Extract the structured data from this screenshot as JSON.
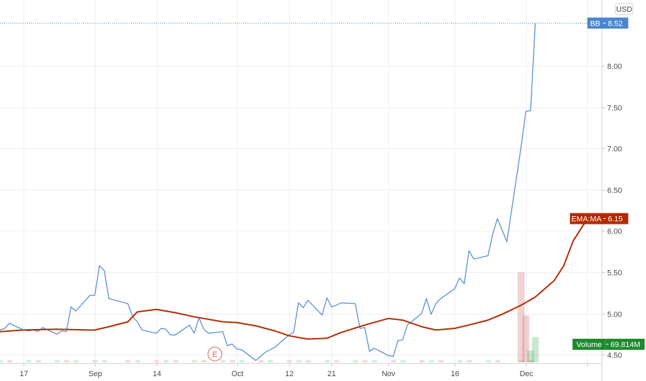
{
  "currency_label": "USD",
  "event_marker": "E",
  "colors": {
    "price_line": "#4a86d0",
    "ema_line": "#b22a00",
    "volume_up": "#2e9e4a",
    "volume_down": "#c94a4a",
    "volume_flag": "#1e8a2e",
    "grid": "#eef0f3",
    "axis_text": "#4a4a4a"
  },
  "price_flags": [
    {
      "label": "BB",
      "value": "8.52",
      "color": "#4a86d0"
    },
    {
      "label": "EMA:MA",
      "value": "6.15",
      "color": "#b22a00"
    },
    {
      "label": "Volume",
      "value": "69.814M",
      "color": "#1e8a2e"
    }
  ],
  "chart_data": {
    "type": "line",
    "ylim": [
      4.4,
      8.8
    ],
    "y_ticks": [
      "8.00",
      "7.50",
      "7.00",
      "6.50",
      "6.00",
      "5.50",
      "5.00",
      "4.50"
    ],
    "x_ticks": [
      {
        "label": "17",
        "date": "2020-08-17"
      },
      {
        "label": "Sep",
        "date": "2020-09-01"
      },
      {
        "label": "14",
        "date": "2020-09-14"
      },
      {
        "label": "Oct",
        "date": "2020-10-01"
      },
      {
        "label": "12",
        "date": "2020-10-12"
      },
      {
        "label": "21",
        "date": "2020-10-21"
      },
      {
        "label": "Nov",
        "date": "2020-11-02"
      },
      {
        "label": "16",
        "date": "2020-11-16"
      },
      {
        "label": "Dec",
        "date": "2020-12-01"
      },
      {
        "label": "",
        "date": "2020-12-14"
      }
    ],
    "x_range": [
      "2020-08-12",
      "2020-12-17"
    ],
    "grid": true,
    "series": [
      {
        "name": "BB",
        "points": [
          [
            "2020-08-12",
            4.8
          ],
          [
            "2020-08-13",
            4.82
          ],
          [
            "2020-08-14",
            4.88
          ],
          [
            "2020-08-17",
            4.8
          ],
          [
            "2020-08-18",
            4.79
          ],
          [
            "2020-08-19",
            4.8
          ],
          [
            "2020-08-20",
            4.78
          ],
          [
            "2020-08-21",
            4.83
          ],
          [
            "2020-08-24",
            4.75
          ],
          [
            "2020-08-25",
            4.79
          ],
          [
            "2020-08-26",
            4.78
          ],
          [
            "2020-08-27",
            5.08
          ],
          [
            "2020-08-28",
            5.03
          ],
          [
            "2020-08-31",
            5.22
          ],
          [
            "2020-09-01",
            5.22
          ],
          [
            "2020-09-02",
            5.58
          ],
          [
            "2020-09-03",
            5.52
          ],
          [
            "2020-09-04",
            5.18
          ],
          [
            "2020-09-08",
            5.12
          ],
          [
            "2020-09-09",
            4.96
          ],
          [
            "2020-09-10",
            4.9
          ],
          [
            "2020-09-11",
            4.8
          ],
          [
            "2020-09-14",
            4.76
          ],
          [
            "2020-09-15",
            4.82
          ],
          [
            "2020-09-16",
            4.81
          ],
          [
            "2020-09-17",
            4.74
          ],
          [
            "2020-09-18",
            4.74
          ],
          [
            "2020-09-21",
            4.86
          ],
          [
            "2020-09-22",
            4.76
          ],
          [
            "2020-09-23",
            4.95
          ],
          [
            "2020-09-24",
            4.81
          ],
          [
            "2020-09-25",
            4.76
          ],
          [
            "2020-09-28",
            4.78
          ],
          [
            "2020-09-29",
            4.61
          ],
          [
            "2020-09-30",
            4.63
          ],
          [
            "2020-10-01",
            4.57
          ],
          [
            "2020-10-02",
            4.56
          ],
          [
            "2020-10-05",
            4.43
          ],
          [
            "2020-10-06",
            4.48
          ],
          [
            "2020-10-07",
            4.53
          ],
          [
            "2020-10-08",
            4.56
          ],
          [
            "2020-10-09",
            4.59
          ],
          [
            "2020-10-12",
            4.74
          ],
          [
            "2020-10-13",
            4.77
          ],
          [
            "2020-10-14",
            5.13
          ],
          [
            "2020-10-15",
            5.07
          ],
          [
            "2020-10-16",
            5.16
          ],
          [
            "2020-10-19",
            4.98
          ],
          [
            "2020-10-20",
            5.19
          ],
          [
            "2020-10-21",
            5.08
          ],
          [
            "2020-10-22",
            5.1
          ],
          [
            "2020-10-23",
            5.13
          ],
          [
            "2020-10-26",
            5.12
          ],
          [
            "2020-10-27",
            4.82
          ],
          [
            "2020-10-28",
            4.83
          ],
          [
            "2020-10-29",
            4.54
          ],
          [
            "2020-10-30",
            4.58
          ],
          [
            "2020-11-02",
            4.49
          ],
          [
            "2020-11-03",
            4.48
          ],
          [
            "2020-11-04",
            4.67
          ],
          [
            "2020-11-05",
            4.68
          ],
          [
            "2020-11-06",
            4.86
          ],
          [
            "2020-11-09",
            5.0
          ],
          [
            "2020-11-10",
            5.18
          ],
          [
            "2020-11-11",
            4.99
          ],
          [
            "2020-11-12",
            5.12
          ],
          [
            "2020-11-13",
            5.18
          ],
          [
            "2020-11-16",
            5.3
          ],
          [
            "2020-11-17",
            5.43
          ],
          [
            "2020-11-18",
            5.36
          ],
          [
            "2020-11-19",
            5.76
          ],
          [
            "2020-11-20",
            5.66
          ],
          [
            "2020-11-23",
            5.7
          ],
          [
            "2020-11-24",
            5.96
          ],
          [
            "2020-11-25",
            6.15
          ],
          [
            "2020-11-27",
            5.87
          ],
          [
            "2020-11-30",
            7.02
          ],
          [
            "2020-12-01",
            7.45
          ],
          [
            "2020-12-02",
            7.46
          ],
          [
            "2020-12-03",
            8.52
          ]
        ]
      },
      {
        "name": "EMA:MA",
        "points": [
          [
            "2020-08-12",
            4.78
          ],
          [
            "2020-08-17",
            4.8
          ],
          [
            "2020-08-24",
            4.81
          ],
          [
            "2020-08-31",
            4.8
          ],
          [
            "2020-09-01",
            4.8
          ],
          [
            "2020-09-04",
            4.84
          ],
          [
            "2020-09-08",
            4.9
          ],
          [
            "2020-09-10",
            5.02
          ],
          [
            "2020-09-14",
            5.05
          ],
          [
            "2020-09-18",
            5.01
          ],
          [
            "2020-09-22",
            4.96
          ],
          [
            "2020-09-28",
            4.9
          ],
          [
            "2020-10-01",
            4.89
          ],
          [
            "2020-10-05",
            4.85
          ],
          [
            "2020-10-09",
            4.79
          ],
          [
            "2020-10-12",
            4.73
          ],
          [
            "2020-10-16",
            4.69
          ],
          [
            "2020-10-20",
            4.7
          ],
          [
            "2020-10-23",
            4.77
          ],
          [
            "2020-10-28",
            4.86
          ],
          [
            "2020-11-02",
            4.94
          ],
          [
            "2020-11-05",
            4.92
          ],
          [
            "2020-11-09",
            4.84
          ],
          [
            "2020-11-12",
            4.8
          ],
          [
            "2020-11-16",
            4.82
          ],
          [
            "2020-11-19",
            4.86
          ],
          [
            "2020-11-23",
            4.92
          ],
          [
            "2020-11-26",
            4.99
          ],
          [
            "2020-11-30",
            5.1
          ],
          [
            "2020-12-03",
            5.2
          ],
          [
            "2020-12-07",
            5.4
          ],
          [
            "2020-12-09",
            5.58
          ],
          [
            "2020-12-11",
            5.88
          ],
          [
            "2020-12-14",
            6.15
          ]
        ]
      }
    ],
    "volume": [
      {
        "date": "2020-11-30",
        "relative": 1.0,
        "direction": "down"
      },
      {
        "date": "2020-12-01",
        "relative": 0.52,
        "direction": "down"
      },
      {
        "date": "2020-12-02",
        "relative": 0.13,
        "direction": "up"
      },
      {
        "date": "2020-12-03",
        "relative": 0.28,
        "direction": "up"
      }
    ]
  }
}
